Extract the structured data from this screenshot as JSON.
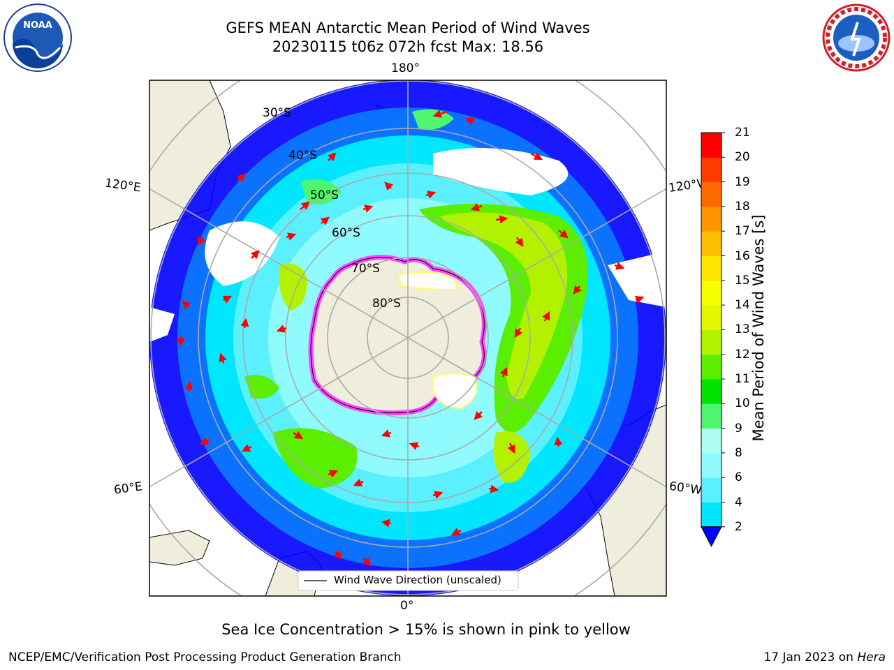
{
  "header": {
    "title_line1": "GEFS MEAN Antarctic Mean Period of Wind Waves",
    "title_line2": "20230115 t06z 072h fcst   Max: 18.56"
  },
  "logos": {
    "left": "noaa-logo",
    "right": "national-weather-service-logo"
  },
  "map": {
    "projection": "south-polar-stereographic",
    "longitude_labels": {
      "top": "180°",
      "bottom": "0°",
      "upper_left": "120°E",
      "upper_right": "120°W",
      "lower_left": "60°E",
      "lower_right": "60°W"
    },
    "latitude_labels": [
      "30°S",
      "40°S",
      "50°S",
      "60°S",
      "70°S",
      "80°S"
    ],
    "legend_label": "Wind Wave Direction (unscaled)",
    "ocean_color": "#ffffff",
    "land_color": "#efeddb",
    "arrow_color": "#ff0000",
    "ice_colors": [
      "#ff44ff",
      "#ffff66"
    ]
  },
  "colorbar": {
    "title": "Mean Period of Wind Waves [s]",
    "ticks": [
      "2",
      "4",
      "6",
      "8",
      "9",
      "10",
      "11",
      "12",
      "13",
      "14",
      "15",
      "16",
      "17",
      "18",
      "19",
      "20",
      "21"
    ],
    "colors": [
      "#0a72ff",
      "#00e6ff",
      "#5af0ff",
      "#90fbff",
      "#aefff2",
      "#50f56e",
      "#00e400",
      "#5cee00",
      "#b2f200",
      "#e2f700",
      "#f6ff00",
      "#ffe400",
      "#ffbe00",
      "#ff9300",
      "#ff6a00",
      "#ff3c00",
      "#ff0000"
    ],
    "extend_color": "#0000ff"
  },
  "footer": {
    "note": "Sea Ice Concentration > 15% is shown in pink to yellow",
    "left": "NCEP/EMC/Verification Post Processing Product Generation Branch",
    "right_date": "17 Jan 2023 on ",
    "right_host": "Hera"
  }
}
